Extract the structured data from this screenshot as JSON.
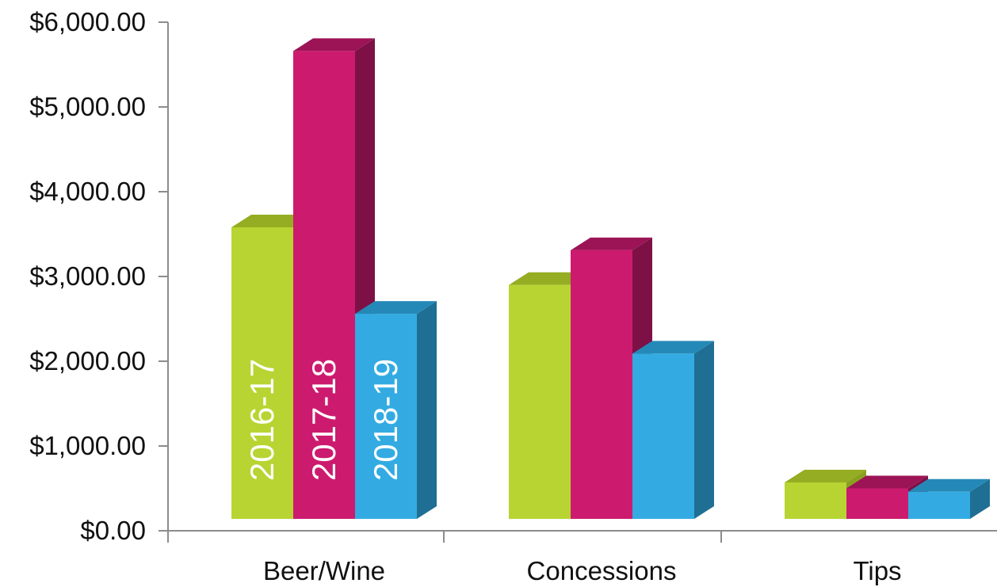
{
  "chart_data": {
    "type": "bar",
    "categories": [
      "Beer/Wine",
      "Concessions",
      "Tips"
    ],
    "series": [
      {
        "name": "2016-17",
        "values": [
          3580,
          2900,
          570
        ],
        "color": "#b8d432",
        "side_color": "#8aa11f",
        "top_color": "#94ad22"
      },
      {
        "name": "2017-18",
        "values": [
          5660,
          3310,
          500
        ],
        "color": "#cc1b6e",
        "side_color": "#7d1146",
        "top_color": "#9c1456"
      },
      {
        "name": "2018-19",
        "values": [
          2560,
          2090,
          460
        ],
        "color": "#33abe2",
        "side_color": "#1f6f94",
        "top_color": "#2589b8"
      }
    ],
    "y_ticks": [
      "$0.00",
      "$1,000.00",
      "$2,000.00",
      "$3,000.00",
      "$4,000.00",
      "$5,000.00",
      "$6,000.00"
    ],
    "ylim": [
      0,
      6000
    ],
    "title": "",
    "xlabel": "",
    "ylabel": "",
    "grid": false,
    "legend": "none (series names written vertically inside first category bars)",
    "style": "3d-clustered-column"
  }
}
